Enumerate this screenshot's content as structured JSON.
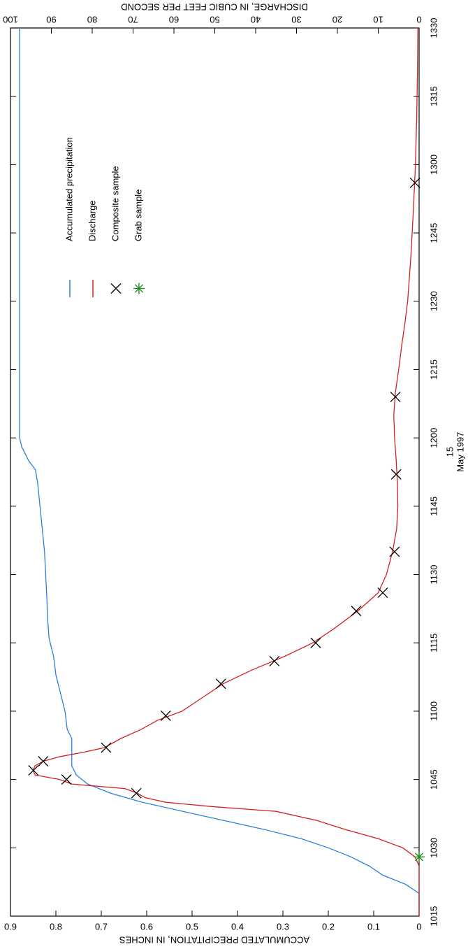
{
  "chart_data": {
    "type": "line",
    "xlabel_lines": [
      "15",
      "May 1997"
    ],
    "ylabel": "ACCUMULATED PRECIPITATION, IN INCHES",
    "y2label": "DISCHARGE, IN CUBIC FEET PER SECOND",
    "xlim": [
      "1015",
      "1330"
    ],
    "xticks": [
      "1015",
      "1030",
      "1045",
      "1100",
      "1115",
      "1130",
      "1145",
      "1200",
      "1215",
      "1230",
      "1245",
      "1300",
      "1315",
      "1330"
    ],
    "ylim": [
      0,
      0.9
    ],
    "yticks": [
      0,
      0.1,
      0.2,
      0.3,
      0.4,
      0.5,
      0.6,
      0.7,
      0.8,
      0.9
    ],
    "y2lim": [
      0,
      100
    ],
    "y2ticks": [
      0,
      10,
      20,
      30,
      40,
      50,
      60,
      70,
      80,
      90,
      100
    ],
    "legend": "upper right",
    "series": [
      {
        "name": "Accumulated precipitation",
        "color": "#2a7fdc",
        "marker": "line",
        "x": [
          "1015",
          "1020",
          "1022",
          "1024",
          "1026",
          "1028",
          "1030",
          "1032",
          "1034",
          "1036",
          "1038",
          "1040",
          "1042",
          "1044",
          "1046",
          "1048",
          "1054",
          "1056",
          "1100",
          "1104",
          "1108",
          "1112",
          "1116",
          "1120",
          "1125",
          "1135",
          "1140",
          "1145",
          "1150",
          "1153",
          "1155",
          "1158",
          "1200",
          "1330"
        ],
        "values": [
          0,
          0,
          0.03,
          0.08,
          0.11,
          0.15,
          0.2,
          0.26,
          0.34,
          0.43,
          0.52,
          0.61,
          0.68,
          0.73,
          0.755,
          0.765,
          0.765,
          0.775,
          0.78,
          0.79,
          0.8,
          0.805,
          0.815,
          0.818,
          0.82,
          0.825,
          0.83,
          0.835,
          0.84,
          0.845,
          0.86,
          0.875,
          0.88,
          0.88
        ]
      },
      {
        "name": "Discharge",
        "color": "#d42020",
        "marker": "line",
        "axis": "y2",
        "x": [
          "1015",
          "1026",
          "1028",
          "1030",
          "1032",
          "1034",
          "1036",
          "1038",
          "1039",
          "1040",
          "1041",
          "1042",
          "1043",
          "1044",
          "1045",
          "1046",
          "1047",
          "1048",
          "1049",
          "1050",
          "1051",
          "1052",
          "1054",
          "1056",
          "1058",
          "1100",
          "1103",
          "1106",
          "1109",
          "1112",
          "1115",
          "1118",
          "1122",
          "1126",
          "1130",
          "1135",
          "1140",
          "1145",
          "1150",
          "1155",
          "1200",
          "1205",
          "1210",
          "1215",
          "1220",
          "1225",
          "1230",
          "1240",
          "1250",
          "1300",
          "1310",
          "1320",
          "1330"
        ],
        "values": [
          0,
          0,
          1,
          4,
          10,
          18,
          25,
          35,
          50,
          62,
          67,
          69,
          72,
          85,
          88,
          94,
          94.5,
          94,
          92,
          88,
          82,
          77,
          73,
          68,
          64,
          58,
          53,
          48,
          41,
          33,
          26,
          21,
          15,
          10,
          8,
          6.5,
          5.5,
          5.2,
          5.3,
          5.6,
          6,
          6.2,
          5.8,
          5,
          4.3,
          3.5,
          2.8,
          2,
          1.4,
          0.9,
          0.6,
          0.4,
          0.3
        ]
      },
      {
        "name": "Composite sample",
        "color": "#000000",
        "marker": "x",
        "axis": "y2",
        "x": [
          "1042",
          "1045",
          "1047",
          "1049",
          "1052",
          "1059",
          "1106",
          "1111",
          "1115",
          "1122",
          "1126",
          "1135",
          "1152",
          "1209",
          "1256"
        ],
        "values": [
          69.2,
          86.3,
          94.4,
          92,
          76.6,
          62,
          48.5,
          35.4,
          25.3,
          15.4,
          8.9,
          6,
          5.6,
          5.8,
          1
        ]
      },
      {
        "name": "Grab sample",
        "color": "#1a8a1a",
        "marker": "star",
        "axis": "y2",
        "x": [
          "1028"
        ],
        "values": [
          0
        ]
      }
    ]
  }
}
